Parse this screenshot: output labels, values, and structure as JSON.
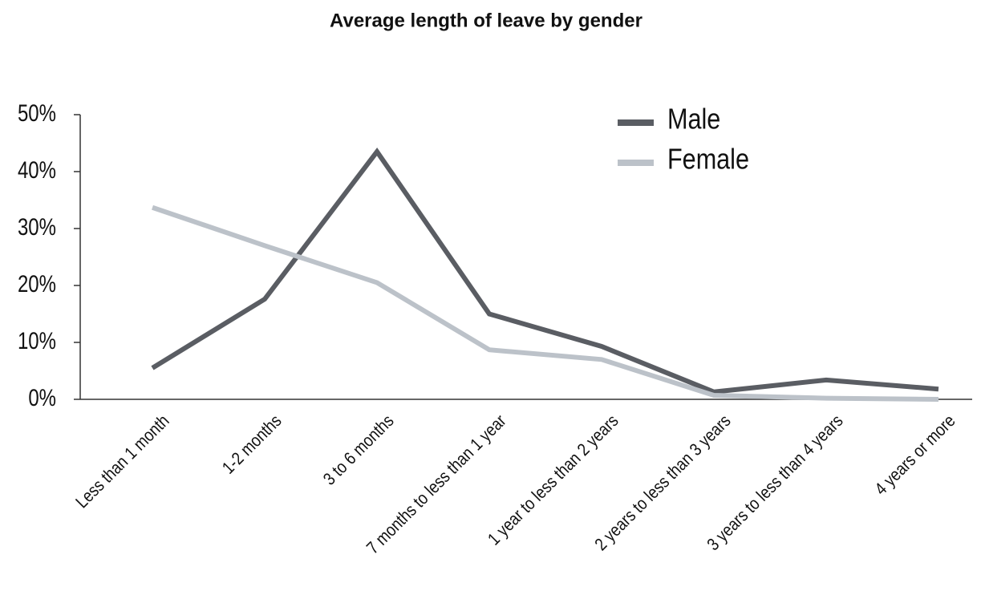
{
  "chart_data": {
    "type": "line",
    "title": "Average length of leave by gender",
    "categories": [
      "Less than 1 month",
      "1-2 months",
      "3 to 6 months",
      "7 months to less than 1 year",
      "1 year to less than 2 years",
      "2 years to less than 3 years",
      "3 years to less than 4 years",
      "4 years or more"
    ],
    "series": [
      {
        "name": "Male",
        "color": "#5a5d63",
        "values": [
          5.5,
          17.6,
          43.5,
          15,
          9.3,
          1.3,
          3.4,
          1.8
        ]
      },
      {
        "name": "Female",
        "color": "#bcc2c9",
        "values": [
          33.7,
          27,
          20.5,
          8.7,
          7,
          0.7,
          0.2,
          0
        ]
      }
    ],
    "ylim": [
      0,
      50
    ],
    "yticks": [
      {
        "value": 0,
        "label": "0%"
      },
      {
        "value": 10,
        "label": "10%"
      },
      {
        "value": 20,
        "label": "20%"
      },
      {
        "value": 30,
        "label": "30%"
      },
      {
        "value": 40,
        "label": "40%"
      },
      {
        "value": 50,
        "label": "50%"
      }
    ],
    "legend": "top-right"
  }
}
